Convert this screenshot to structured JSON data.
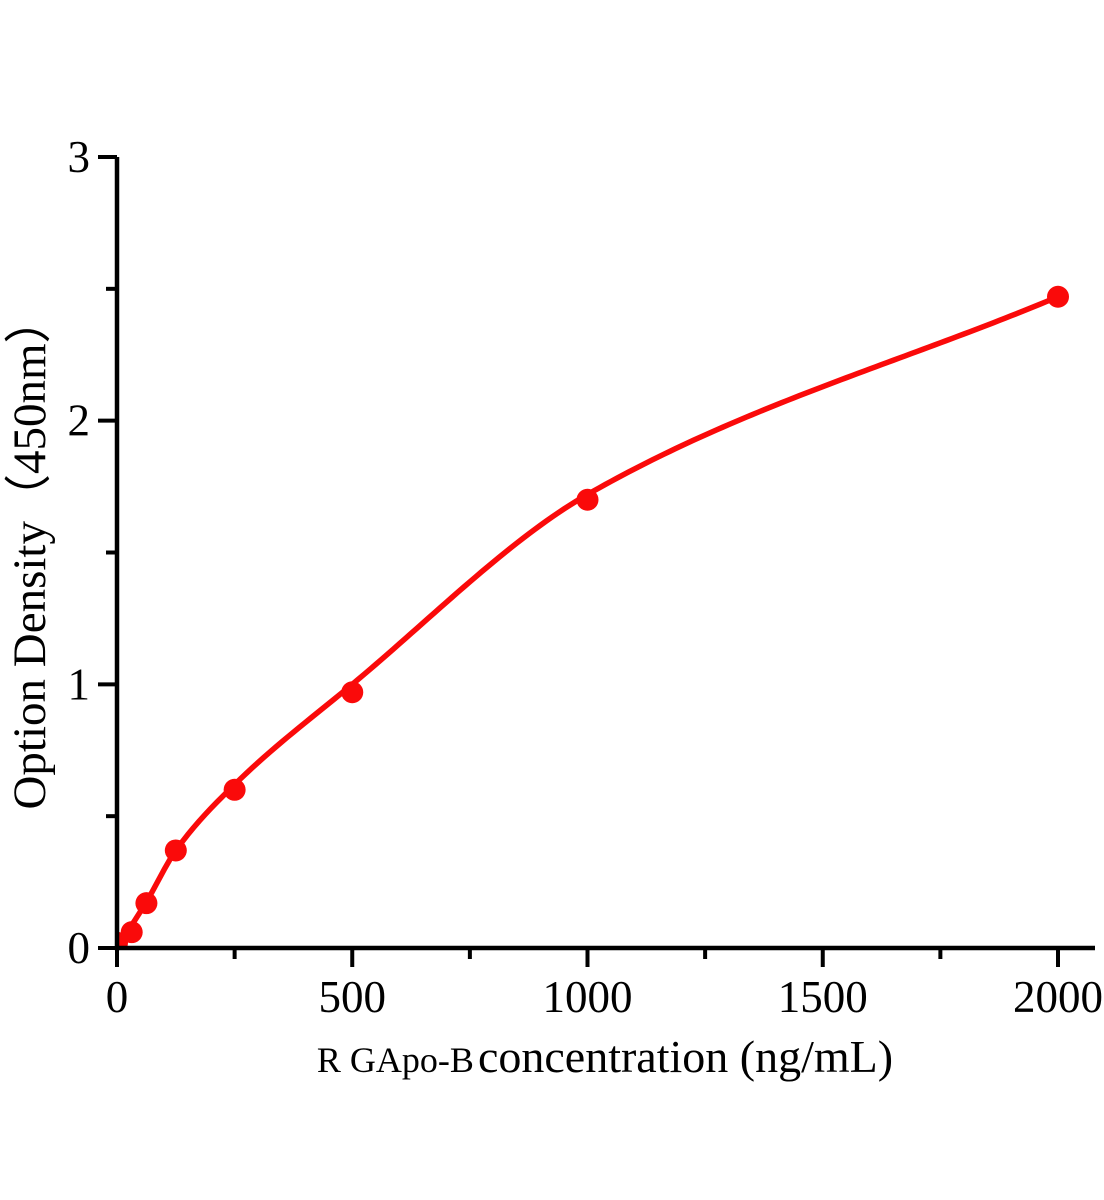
{
  "figure": {
    "background": "#ffffff",
    "axis_color": "#000000",
    "accent_red": "#fa0a0a"
  },
  "chart_data": {
    "type": "scatter",
    "title": "",
    "xlabel_prefix": "R GApo-B",
    "xlabel_main": " concentration (ng/mL)",
    "ylabel": "Option Density（450nm）",
    "series": [
      {
        "name": "standard-curve-points",
        "marker": "circle",
        "color": "#fa0a0a",
        "x": [
          0,
          31.25,
          62.5,
          125,
          250,
          500,
          1000,
          2000
        ],
        "y": [
          0.02,
          0.06,
          0.17,
          0.37,
          0.6,
          0.97,
          1.7,
          2.47
        ]
      }
    ],
    "fit_curve": {
      "name": "fitted-curve",
      "color": "#fa0a0a",
      "x": [
        0,
        62.5,
        125,
        250,
        500,
        1000,
        2000
      ],
      "y": [
        0.0,
        0.175,
        0.37,
        0.62,
        1.0,
        1.72,
        2.47
      ]
    },
    "xlim": [
      0,
      2000
    ],
    "ylim": [
      0,
      3
    ],
    "x_major_ticks": [
      0,
      500,
      1000,
      1500,
      2000
    ],
    "x_minor_ticks": [
      250,
      750,
      1250,
      1750
    ],
    "y_major_ticks": [
      0,
      1,
      2,
      3
    ],
    "y_minor_ticks": [
      0.5,
      1.5,
      2.5
    ],
    "grid": false,
    "legend": "none"
  }
}
